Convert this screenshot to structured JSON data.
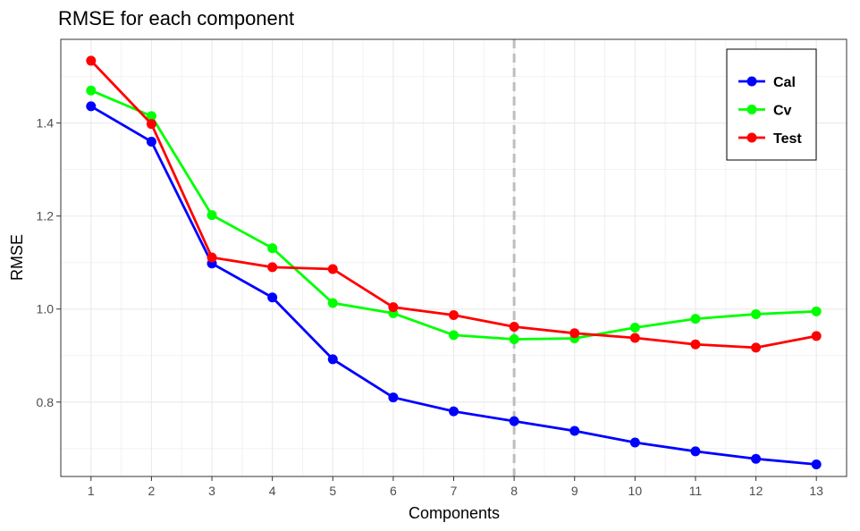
{
  "chart_data": {
    "type": "line",
    "title": "RMSE for each component",
    "xlabel": "Components",
    "ylabel": "RMSE",
    "x": [
      1,
      2,
      3,
      4,
      5,
      6,
      7,
      8,
      9,
      10,
      11,
      12,
      13
    ],
    "xlim": [
      0.5,
      13.5
    ],
    "ylim": [
      0.64,
      1.58
    ],
    "y_ticks": [
      0.8,
      1.0,
      1.2,
      1.4
    ],
    "grid": true,
    "legend_position": "top-right",
    "vline": {
      "x": 8,
      "style": "dashed",
      "color": "#bebebe"
    },
    "series": [
      {
        "name": "Cal",
        "color": "#0000ff",
        "values": [
          1.436,
          1.36,
          1.098,
          1.025,
          0.892,
          0.81,
          0.78,
          0.759,
          0.738,
          0.713,
          0.694,
          0.678,
          0.666
        ]
      },
      {
        "name": "Cv",
        "color": "#00ff00",
        "values": [
          1.47,
          1.415,
          1.202,
          1.131,
          1.013,
          0.991,
          0.944,
          0.935,
          0.937,
          0.96,
          0.979,
          0.989,
          0.995
        ]
      },
      {
        "name": "Test",
        "color": "#ff0000",
        "values": [
          1.534,
          1.398,
          1.111,
          1.09,
          1.086,
          1.004,
          0.987,
          0.962,
          0.948,
          0.938,
          0.924,
          0.917,
          0.942
        ]
      }
    ]
  }
}
